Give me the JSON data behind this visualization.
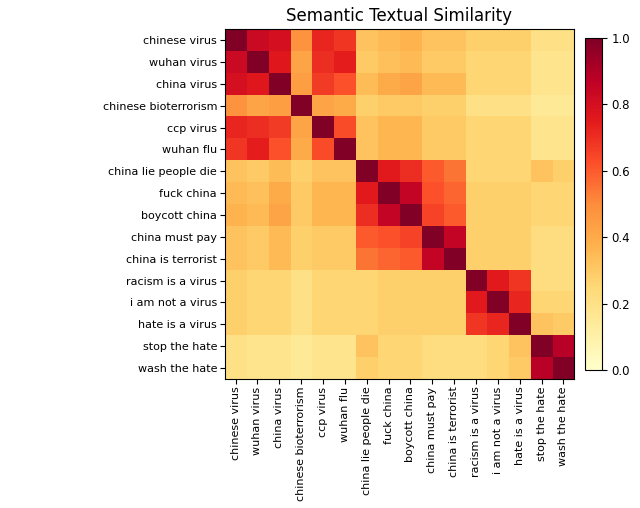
{
  "title": "Semantic Textual Similarity",
  "labels": [
    "chinese virus",
    "wuhan virus",
    "china virus",
    "chinese bioterrorism",
    "ccp virus",
    "wuhan flu",
    "china lie people die",
    "fuck china",
    "boycott china",
    "china must pay",
    "china is terrorist",
    "racism is a virus",
    "i am not a virus",
    "hate is a virus",
    "stop the hate",
    "wash the hate"
  ],
  "matrix": [
    [
      1.0,
      0.83,
      0.8,
      0.48,
      0.72,
      0.68,
      0.32,
      0.35,
      0.37,
      0.32,
      0.32,
      0.28,
      0.28,
      0.28,
      0.2,
      0.2
    ],
    [
      0.83,
      1.0,
      0.76,
      0.42,
      0.7,
      0.74,
      0.3,
      0.33,
      0.35,
      0.3,
      0.3,
      0.26,
      0.26,
      0.26,
      0.18,
      0.18
    ],
    [
      0.8,
      0.76,
      1.0,
      0.44,
      0.67,
      0.62,
      0.34,
      0.4,
      0.42,
      0.35,
      0.35,
      0.26,
      0.26,
      0.26,
      0.18,
      0.18
    ],
    [
      0.48,
      0.42,
      0.44,
      1.0,
      0.42,
      0.4,
      0.28,
      0.3,
      0.3,
      0.28,
      0.28,
      0.2,
      0.2,
      0.2,
      0.15,
      0.15
    ],
    [
      0.72,
      0.7,
      0.67,
      0.42,
      1.0,
      0.63,
      0.32,
      0.36,
      0.36,
      0.3,
      0.3,
      0.26,
      0.26,
      0.26,
      0.18,
      0.18
    ],
    [
      0.68,
      0.74,
      0.62,
      0.4,
      0.63,
      1.0,
      0.32,
      0.36,
      0.36,
      0.3,
      0.3,
      0.26,
      0.26,
      0.26,
      0.18,
      0.18
    ],
    [
      0.32,
      0.3,
      0.34,
      0.28,
      0.32,
      0.32,
      1.0,
      0.75,
      0.7,
      0.6,
      0.55,
      0.26,
      0.26,
      0.26,
      0.32,
      0.28
    ],
    [
      0.35,
      0.33,
      0.4,
      0.3,
      0.36,
      0.36,
      0.75,
      1.0,
      0.85,
      0.62,
      0.58,
      0.28,
      0.28,
      0.28,
      0.26,
      0.26
    ],
    [
      0.37,
      0.35,
      0.42,
      0.3,
      0.36,
      0.36,
      0.7,
      0.85,
      1.0,
      0.65,
      0.6,
      0.28,
      0.28,
      0.28,
      0.26,
      0.26
    ],
    [
      0.32,
      0.3,
      0.35,
      0.28,
      0.3,
      0.3,
      0.6,
      0.62,
      0.65,
      1.0,
      0.85,
      0.28,
      0.28,
      0.28,
      0.22,
      0.22
    ],
    [
      0.32,
      0.3,
      0.35,
      0.28,
      0.3,
      0.3,
      0.55,
      0.58,
      0.6,
      0.85,
      1.0,
      0.28,
      0.28,
      0.28,
      0.22,
      0.22
    ],
    [
      0.28,
      0.26,
      0.26,
      0.2,
      0.26,
      0.26,
      0.26,
      0.28,
      0.28,
      0.28,
      0.28,
      1.0,
      0.75,
      0.68,
      0.22,
      0.22
    ],
    [
      0.28,
      0.26,
      0.26,
      0.2,
      0.26,
      0.26,
      0.26,
      0.28,
      0.28,
      0.28,
      0.28,
      0.75,
      1.0,
      0.72,
      0.26,
      0.26
    ],
    [
      0.28,
      0.26,
      0.26,
      0.2,
      0.26,
      0.26,
      0.26,
      0.28,
      0.28,
      0.28,
      0.28,
      0.68,
      0.72,
      1.0,
      0.32,
      0.3
    ],
    [
      0.2,
      0.18,
      0.18,
      0.15,
      0.18,
      0.18,
      0.32,
      0.26,
      0.26,
      0.22,
      0.22,
      0.22,
      0.26,
      0.32,
      1.0,
      0.88
    ],
    [
      0.2,
      0.18,
      0.18,
      0.15,
      0.18,
      0.18,
      0.28,
      0.26,
      0.26,
      0.22,
      0.22,
      0.22,
      0.26,
      0.3,
      0.88,
      1.0
    ]
  ],
  "cmap": "YlOrRd",
  "vmin": 0.0,
  "vmax": 1.0,
  "title_fontsize": 12,
  "tick_fontsize": 8,
  "colorbar_ticks": [
    0.0,
    0.2,
    0.4,
    0.6,
    0.8,
    1.0
  ],
  "figsize": [
    6.4,
    5.08
  ],
  "dpi": 100
}
